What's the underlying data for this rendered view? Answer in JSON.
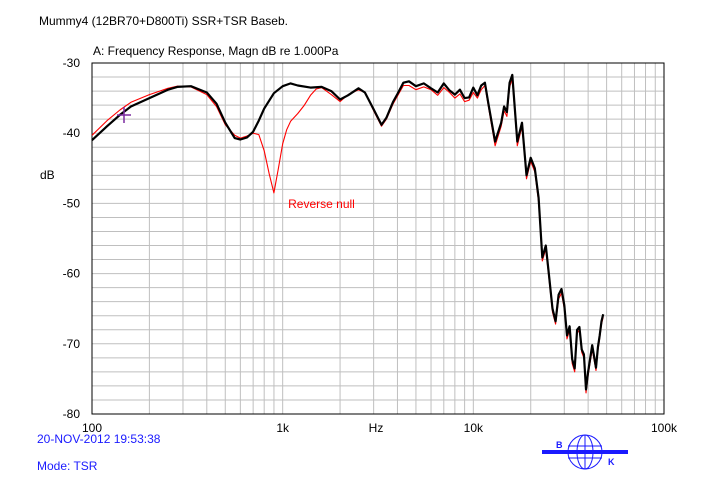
{
  "header": {
    "title": "Mummy4 (12BR70+D800Ti)    SSR+TSR Baseb."
  },
  "footer": {
    "timestamp": "20-NOV-2012 19:53:38",
    "mode": "Mode: TSR"
  },
  "logo": {
    "letter_left": "B",
    "letter_right": "K",
    "color": "#1a1aff"
  },
  "colors": {
    "black_trace": "#000000",
    "red_trace": "#ff0000",
    "grid": "#bfbfbf"
  },
  "chart_data": {
    "type": "line",
    "title": "A: Frequency Response, Magn dB re 1.000Pa",
    "xlabel": "Hz",
    "ylabel": "dB",
    "x_scale": "log",
    "xlim": [
      100,
      100000
    ],
    "ylim": [
      -80,
      -30
    ],
    "grid": true,
    "x_ticks": [
      {
        "value": 100,
        "label": "100"
      },
      {
        "value": 1000,
        "label": "1k"
      },
      {
        "value": 10000,
        "label": "10k"
      },
      {
        "value": 100000,
        "label": "100k"
      }
    ],
    "y_ticks": [
      {
        "value": -30,
        "label": "-30"
      },
      {
        "value": -40,
        "label": "-40"
      },
      {
        "value": -50,
        "label": "-50"
      },
      {
        "value": -60,
        "label": "-60"
      },
      {
        "value": -70,
        "label": "-70"
      },
      {
        "value": -80,
        "label": "-80"
      }
    ],
    "annotations": [
      {
        "text": "Reverse null",
        "x": 970,
        "y": -49.5,
        "color": "#ff0000"
      }
    ],
    "series": [
      {
        "color": "#000000",
        "x": [
          100,
          120,
          140,
          160,
          200,
          250,
          280,
          330,
          400,
          450,
          500,
          560,
          600,
          650,
          700,
          750,
          800,
          900,
          1000,
          1100,
          1200,
          1400,
          1600,
          1800,
          2000,
          2200,
          2500,
          2700,
          3000,
          3300,
          3500,
          3800,
          4000,
          4300,
          4600,
          5000,
          5500,
          6000,
          6500,
          7000,
          7500,
          8000,
          8500,
          9000,
          9500,
          10000,
          10500,
          11000,
          11500,
          12000,
          13000,
          14000,
          14500,
          15000,
          15500,
          16000,
          17000,
          18000,
          19000,
          20000,
          21000,
          22000,
          23000,
          24000,
          25000,
          26000,
          27000,
          28000,
          29000,
          30000,
          31000,
          32000,
          33000,
          34000,
          35000,
          36000,
          37000,
          38000,
          39000,
          40000,
          42000,
          44000,
          45000,
          46000,
          47000,
          48000
        ],
        "y": [
          -41,
          -39,
          -37.4,
          -36.2,
          -35,
          -33.8,
          -33.4,
          -33.3,
          -34.2,
          -35.8,
          -38.5,
          -40.7,
          -40.9,
          -40.6,
          -39.8,
          -38.2,
          -36.5,
          -34.3,
          -33.3,
          -32.9,
          -33.2,
          -33.5,
          -33.4,
          -34.0,
          -35.2,
          -34.6,
          -33.6,
          -34.2,
          -36.6,
          -38.8,
          -37.8,
          -35.5,
          -34.4,
          -32.8,
          -32.6,
          -33.3,
          -32.9,
          -33.6,
          -34.2,
          -32.9,
          -33.9,
          -34.5,
          -33.8,
          -35.0,
          -34.9,
          -33.5,
          -34.6,
          -33.2,
          -32.8,
          -35.8,
          -41.2,
          -38.5,
          -36.2,
          -37.0,
          -32.8,
          -31.7,
          -41.2,
          -38.5,
          -46.0,
          -43.5,
          -45.0,
          -49.2,
          -57.7,
          -56.0,
          -60.5,
          -65.0,
          -66.8,
          -63.0,
          -62.2,
          -64.5,
          -68.8,
          -67.5,
          -72.2,
          -73.5,
          -68.0,
          -67.6,
          -70.8,
          -71.5,
          -76.5,
          -74.0,
          -70.2,
          -73.4,
          -70.5,
          -68.8,
          -66.8,
          -65.8
        ]
      },
      {
        "color": "#ff0000",
        "x": [
          100,
          120,
          140,
          160,
          200,
          250,
          280,
          330,
          400,
          450,
          500,
          560,
          600,
          650,
          700,
          750,
          800,
          850,
          900,
          950,
          1000,
          1050,
          1100,
          1200,
          1300,
          1400,
          1500,
          1600,
          1800,
          2000,
          2200,
          2500,
          2700,
          3000,
          3300,
          3500,
          3800,
          4000,
          4300,
          4600,
          5000,
          5500,
          6000,
          6500,
          7000,
          7500,
          8000,
          8500,
          9000,
          9500,
          10000,
          10500,
          11000,
          11500,
          12000,
          13000,
          14000,
          14500,
          15000,
          15500,
          16000,
          17000,
          18000,
          19000,
          20000,
          21000,
          22000,
          23000,
          24000,
          25000,
          26000,
          27000,
          28000,
          29000,
          30000,
          31000,
          32000,
          33000,
          34000,
          35000,
          36000,
          37000,
          38000,
          39000,
          40000,
          42000,
          44000,
          45000,
          46000,
          47000,
          48000
        ],
        "y": [
          -40.3,
          -38.2,
          -36.7,
          -35.6,
          -34.5,
          -33.6,
          -33.3,
          -33.4,
          -34.5,
          -36.2,
          -38.8,
          -40.3,
          -40.7,
          -40.4,
          -40.0,
          -40.2,
          -42.5,
          -45.8,
          -48.5,
          -45.0,
          -41.5,
          -39.5,
          -38.3,
          -37.2,
          -36.0,
          -34.6,
          -33.7,
          -33.5,
          -34.5,
          -35.5,
          -34.5,
          -33.8,
          -34.2,
          -36.8,
          -39.0,
          -38.0,
          -35.8,
          -34.7,
          -33.2,
          -33.2,
          -33.8,
          -33.4,
          -33.8,
          -34.6,
          -33.5,
          -34.2,
          -35.0,
          -34.4,
          -35.5,
          -35.3,
          -34.2,
          -35.0,
          -33.8,
          -33.2,
          -36.2,
          -41.8,
          -39.0,
          -36.8,
          -37.6,
          -33.4,
          -32.3,
          -41.8,
          -39.0,
          -46.5,
          -44.0,
          -45.5,
          -49.8,
          -58.2,
          -56.5,
          -61.0,
          -65.5,
          -67.2,
          -63.6,
          -62.8,
          -65.0,
          -69.3,
          -68.0,
          -72.8,
          -74.0,
          -68.5,
          -68.0,
          -71.2,
          -72.0,
          -77.0,
          -74.5,
          -70.8,
          -73.8,
          -71.0,
          -69.2,
          -67.2,
          -66.2
        ]
      }
    ]
  }
}
